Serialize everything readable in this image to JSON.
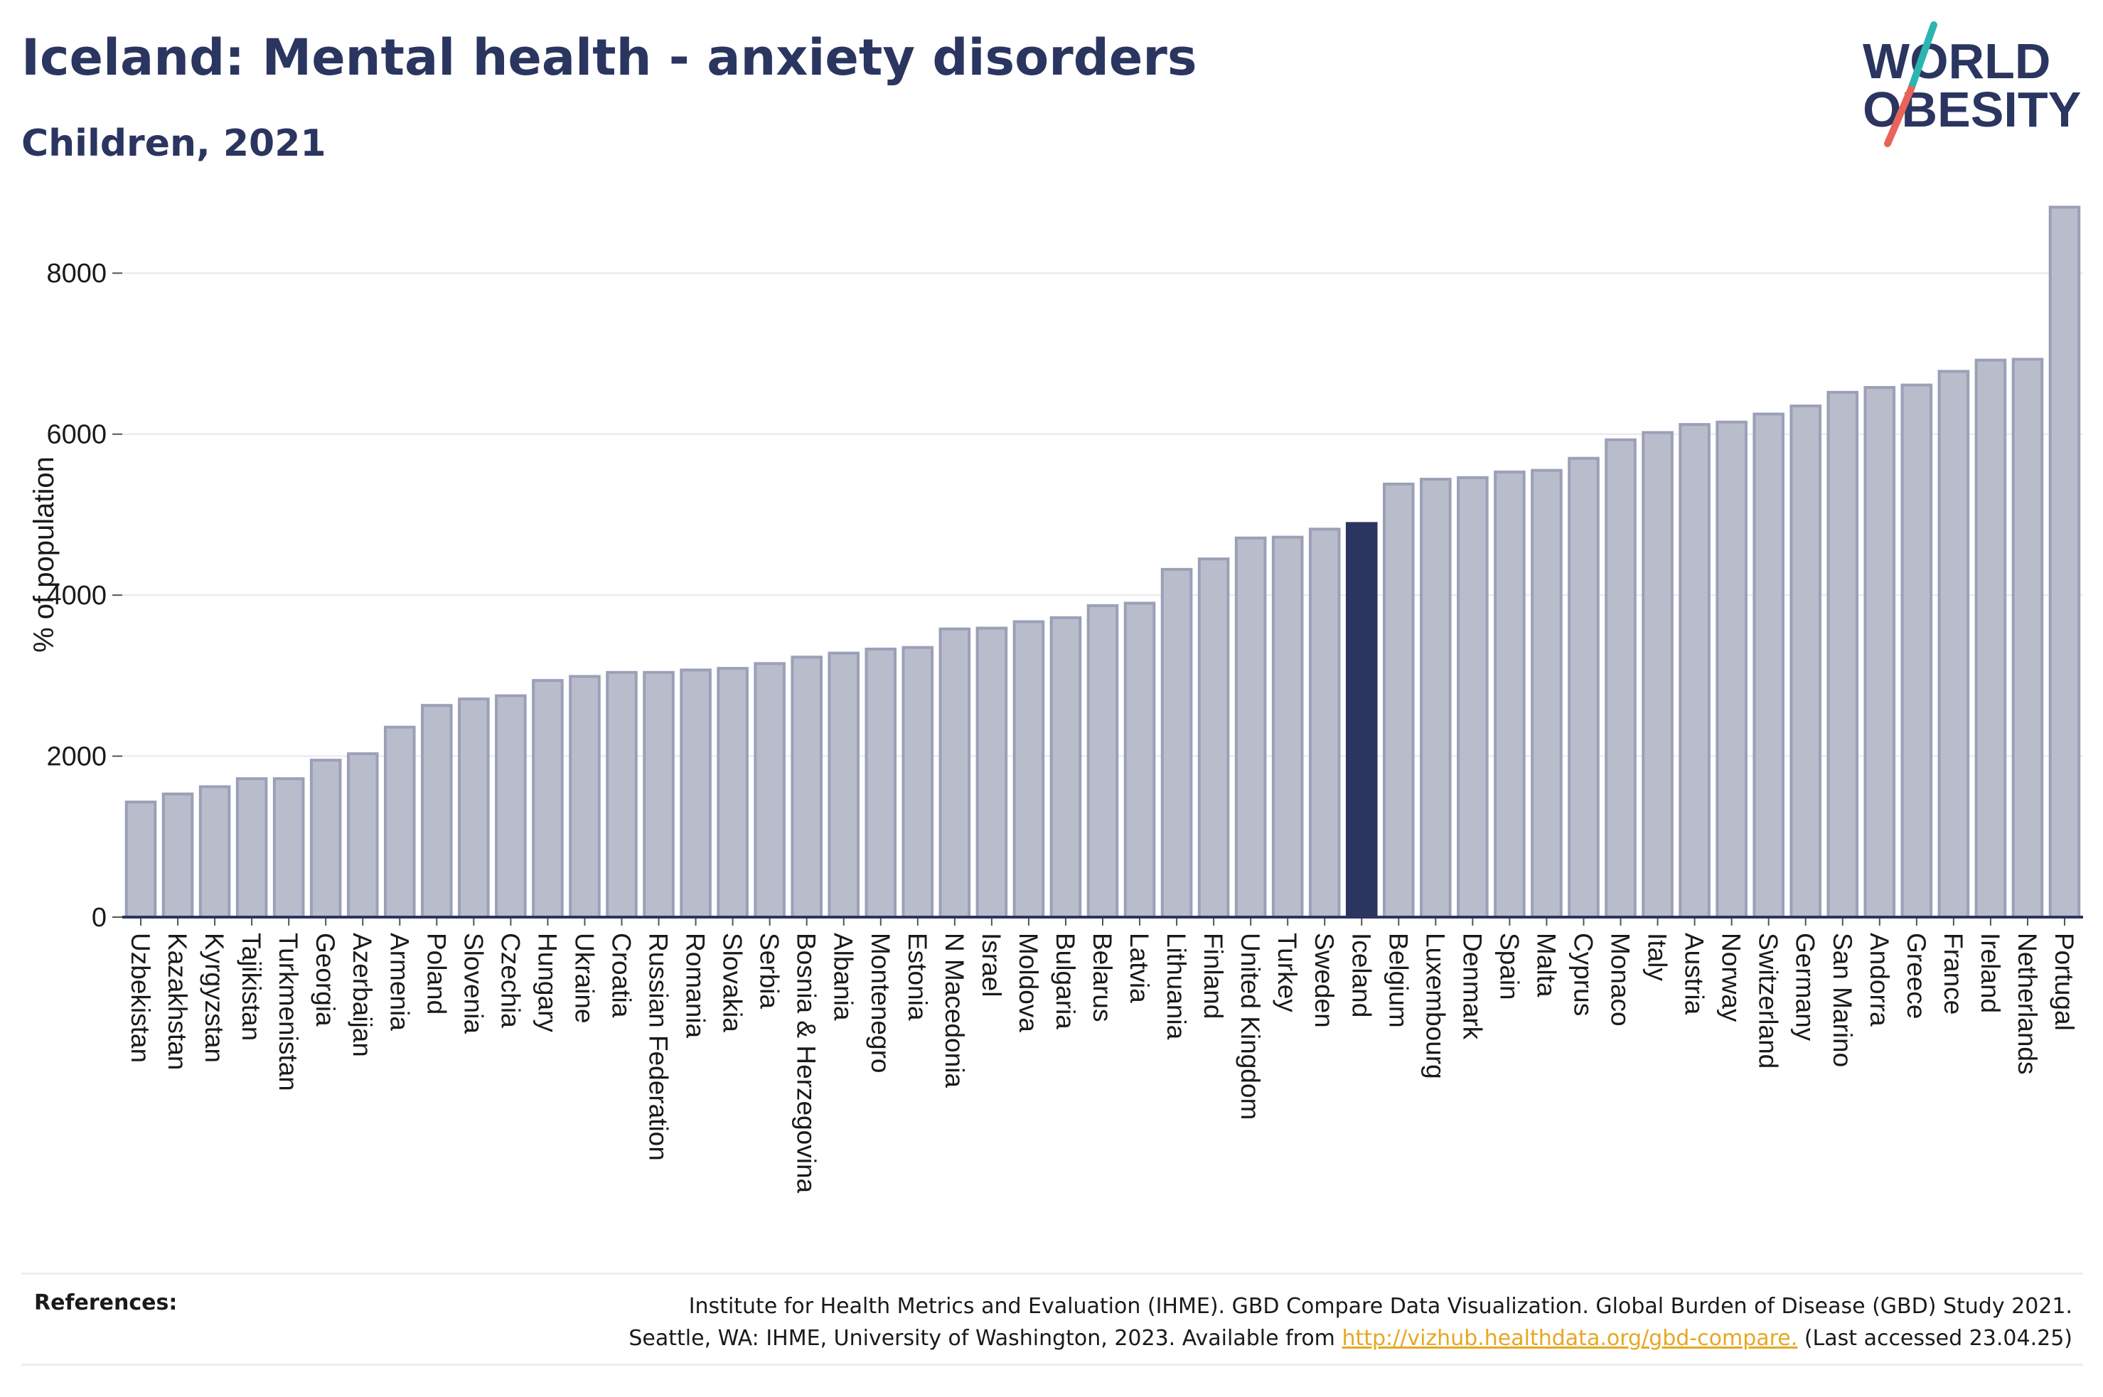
{
  "header": {
    "title": "Iceland: Mental health - anxiety disorders",
    "subtitle": "Children, 2021"
  },
  "logo": {
    "line1": "WORLD",
    "line2": "OBESITY",
    "colors": {
      "text": "#2a3560",
      "slash_top": "#2bb5b0",
      "slash_bottom": "#e8645a"
    }
  },
  "colors": {
    "bar": "#b9bccb",
    "bar_stroke": "#9ba0b8",
    "highlight": "#2a3560",
    "grid": "#e6e8ee",
    "axis": "#2a3560",
    "link": "#e5a823"
  },
  "chart_data": {
    "type": "bar",
    "title": "Iceland: Mental health - anxiety disorders",
    "subtitle": "Children, 2021",
    "xlabel": "",
    "ylabel": "% of population",
    "ylim": [
      0,
      9000
    ],
    "yticks": [
      0,
      2000,
      4000,
      6000,
      8000
    ],
    "grid": true,
    "highlight": "Iceland",
    "categories": [
      "Uzbekistan",
      "Kazakhstan",
      "Kyrgyzstan",
      "Tajikistan",
      "Turkmenistan",
      "Georgia",
      "Azerbaijan",
      "Armenia",
      "Poland",
      "Slovenia",
      "Czechia",
      "Hungary",
      "Ukraine",
      "Croatia",
      "Russian Federation",
      "Romania",
      "Slovakia",
      "Serbia",
      "Bosnia & Herzegovina",
      "Albania",
      "Montenegro",
      "Estonia",
      "N Macedonia",
      "Israel",
      "Moldova",
      "Bulgaria",
      "Belarus",
      "Latvia",
      "Lithuania",
      "Finland",
      "United Kingdom",
      "Turkey",
      "Sweden",
      "Iceland",
      "Belgium",
      "Luxembourg",
      "Denmark",
      "Spain",
      "Malta",
      "Cyprus",
      "Monaco",
      "Italy",
      "Austria",
      "Norway",
      "Switzerland",
      "Germany",
      "San Marino",
      "Andorra",
      "Greece",
      "France",
      "Ireland",
      "Netherlands",
      "Portugal"
    ],
    "values": [
      1430,
      1530,
      1620,
      1720,
      1720,
      1950,
      2030,
      2360,
      2630,
      2710,
      2750,
      2940,
      2990,
      3040,
      3040,
      3070,
      3090,
      3150,
      3230,
      3280,
      3330,
      3350,
      3580,
      3590,
      3670,
      3720,
      3870,
      3900,
      4320,
      4450,
      4710,
      4720,
      4820,
      4890,
      5380,
      5440,
      5460,
      5530,
      5550,
      5700,
      5930,
      6020,
      6120,
      6150,
      6250,
      6350,
      6520,
      6580,
      6610,
      6780,
      6920,
      6930,
      8820
    ]
  },
  "references": {
    "label": "References:",
    "line1": "Institute for Health Metrics and Evaluation (IHME). GBD Compare Data Visualization. Global Burden of Disease (GBD) Study 2021.",
    "line2_prefix": "Seattle, WA: IHME, University of Washington, 2023. Available from ",
    "link": "http://vizhub.healthdata.org/gbd-compare.",
    "line2_suffix": " (Last accessed 23.04.25)"
  }
}
